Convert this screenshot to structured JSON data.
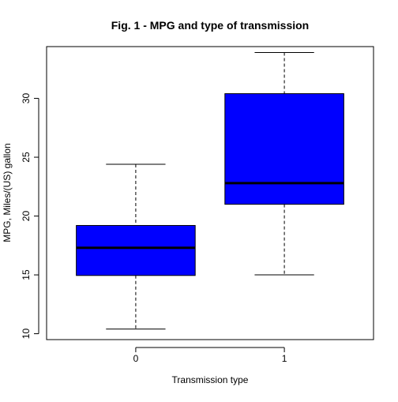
{
  "chart_data": {
    "type": "boxplot",
    "title": "Fig. 1 - MPG and type of transmission",
    "xlabel": "Transmission type",
    "ylabel": "MPG, Miles/(US) gallon",
    "categories": [
      "0",
      "1"
    ],
    "y_ticks": [
      "10",
      "15",
      "20",
      "25",
      "30"
    ],
    "ylim": [
      9.5,
      34.4
    ],
    "box_color": "#0000ff",
    "boxes": [
      {
        "category": "0",
        "min": 10.4,
        "q1": 14.95,
        "median": 17.3,
        "q3": 19.2,
        "max": 24.4
      },
      {
        "category": "1",
        "min": 15.0,
        "q1": 21.0,
        "median": 22.8,
        "q3": 30.4,
        "max": 33.9
      }
    ],
    "grid": false,
    "legend": null
  }
}
